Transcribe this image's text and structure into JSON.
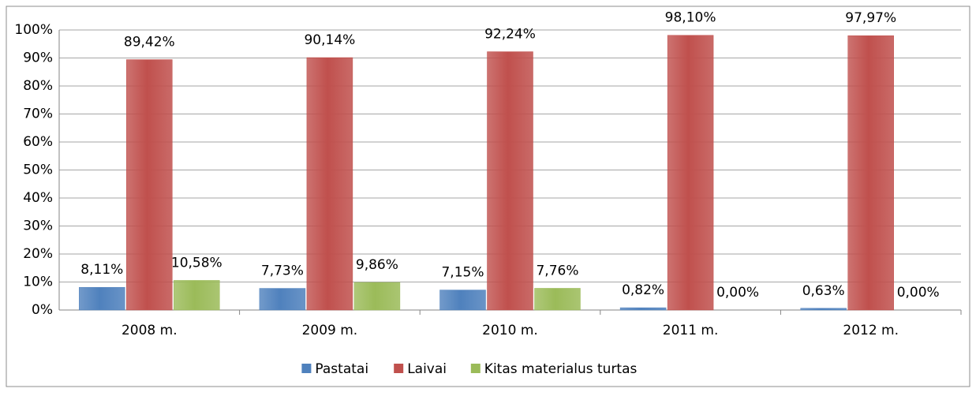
{
  "chart_data": {
    "type": "bar",
    "categories": [
      "2008 m.",
      "2009 m.",
      "2010 m.",
      "2011 m.",
      "2012 m."
    ],
    "series": [
      {
        "name": "Pastatai",
        "color": "#4f81bd",
        "values": [
          8.11,
          7.73,
          7.15,
          0.82,
          0.63
        ],
        "value_labels": [
          "8,11%",
          "7,73%",
          "7,15%",
          "0,82%",
          "0,63%"
        ]
      },
      {
        "name": "Laivai",
        "color": "#c0504d",
        "values": [
          89.42,
          90.14,
          92.24,
          98.1,
          97.97
        ],
        "value_labels": [
          "89,42%",
          "90,14%",
          "92,24%",
          "98,10%",
          "97,97%"
        ]
      },
      {
        "name": "Kitas materialus turtas",
        "color": "#9bbb59",
        "values": [
          10.58,
          9.86,
          7.76,
          0.0,
          0.0
        ],
        "value_labels": [
          "10,58%",
          "9,86%",
          "7,76%",
          "0,00%",
          "0,00%"
        ]
      }
    ],
    "ylim": [
      0,
      100
    ],
    "yticks": [
      {
        "value": 0,
        "label": "0%"
      },
      {
        "value": 10,
        "label": "10%"
      },
      {
        "value": 20,
        "label": "20%"
      },
      {
        "value": 30,
        "label": "30%"
      },
      {
        "value": 40,
        "label": "40%"
      },
      {
        "value": 50,
        "label": "50%"
      },
      {
        "value": 60,
        "label": "60%"
      },
      {
        "value": 70,
        "label": "70%"
      },
      {
        "value": 80,
        "label": "80%"
      },
      {
        "value": 90,
        "label": "90%"
      },
      {
        "value": 100,
        "label": "100%"
      }
    ],
    "grid": true,
    "legend": "bottom"
  }
}
